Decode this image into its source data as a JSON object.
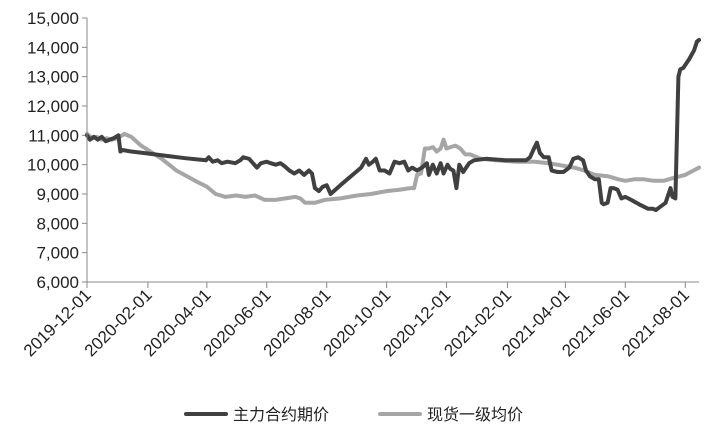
{
  "chart_data": {
    "type": "line",
    "title": "",
    "xlabel": "",
    "ylabel": "",
    "ylim": [
      6000,
      15000
    ],
    "yticks": [
      6000,
      7000,
      8000,
      9000,
      10000,
      11000,
      12000,
      13000,
      14000,
      15000
    ],
    "ytick_labels": [
      "6,000",
      "7,000",
      "8,000",
      "9,000",
      "10,000",
      "11,000",
      "12,000",
      "13,000",
      "14,000",
      "15,000"
    ],
    "xlim": [
      "2019-12-01",
      "2021-08-15"
    ],
    "xticks": [
      "2019-12-01",
      "2020-02-01",
      "2020-04-01",
      "2020-06-01",
      "2020-08-01",
      "2020-10-01",
      "2020-12-01",
      "2021-02-01",
      "2021-04-01",
      "2021-06-01",
      "2021-08-01"
    ],
    "grid": false,
    "legend": "bottom",
    "series": [
      {
        "name": "主力合约期价",
        "color": "#404040",
        "points": [
          [
            "2019-12-01",
            11000
          ],
          [
            "2019-12-04",
            10850
          ],
          [
            "2019-12-08",
            10950
          ],
          [
            "2019-12-12",
            10850
          ],
          [
            "2019-12-16",
            10950
          ],
          [
            "2019-12-20",
            10800
          ],
          [
            "2019-12-24",
            10850
          ],
          [
            "2019-12-28",
            10900
          ],
          [
            "2020-01-02",
            11000
          ],
          [
            "2020-01-04",
            10450
          ],
          [
            "2020-01-06",
            10500
          ],
          [
            "2020-01-15",
            10450
          ],
          [
            "2020-02-01",
            10380
          ],
          [
            "2020-02-20",
            10300
          ],
          [
            "2020-03-10",
            10220
          ],
          [
            "2020-03-31",
            10150
          ],
          [
            "2020-04-03",
            10250
          ],
          [
            "2020-04-07",
            10100
          ],
          [
            "2020-04-12",
            10150
          ],
          [
            "2020-04-16",
            10050
          ],
          [
            "2020-04-22",
            10100
          ],
          [
            "2020-04-30",
            10050
          ],
          [
            "2020-05-05",
            10150
          ],
          [
            "2020-05-08",
            10250
          ],
          [
            "2020-05-14",
            10200
          ],
          [
            "2020-05-18",
            10050
          ],
          [
            "2020-05-22",
            9900
          ],
          [
            "2020-05-26",
            10050
          ],
          [
            "2020-06-01",
            10100
          ],
          [
            "2020-06-05",
            10050
          ],
          [
            "2020-06-10",
            10000
          ],
          [
            "2020-06-15",
            10050
          ],
          [
            "2020-06-19",
            9950
          ],
          [
            "2020-06-24",
            9800
          ],
          [
            "2020-06-29",
            9700
          ],
          [
            "2020-07-04",
            9800
          ],
          [
            "2020-07-09",
            9650
          ],
          [
            "2020-07-14",
            9800
          ],
          [
            "2020-07-17",
            9700
          ],
          [
            "2020-07-20",
            9200
          ],
          [
            "2020-07-24",
            9100
          ],
          [
            "2020-07-28",
            9250
          ],
          [
            "2020-08-01",
            9300
          ],
          [
            "2020-08-05",
            9000
          ],
          [
            "2020-08-15",
            9300
          ],
          [
            "2020-09-05",
            9900
          ],
          [
            "2020-09-10",
            10200
          ],
          [
            "2020-09-13",
            10000
          ],
          [
            "2020-09-17",
            10100
          ],
          [
            "2020-09-20",
            10200
          ],
          [
            "2020-09-24",
            9800
          ],
          [
            "2020-09-29",
            9800
          ],
          [
            "2020-10-04",
            9700
          ],
          [
            "2020-10-09",
            10100
          ],
          [
            "2020-10-14",
            10050
          ],
          [
            "2020-10-19",
            10100
          ],
          [
            "2020-10-23",
            9800
          ],
          [
            "2020-10-27",
            9900
          ],
          [
            "2020-11-01",
            9800
          ],
          [
            "2020-11-06",
            9900
          ],
          [
            "2020-11-11",
            10050
          ],
          [
            "2020-11-13",
            9650
          ],
          [
            "2020-11-17",
            10000
          ],
          [
            "2020-11-21",
            9700
          ],
          [
            "2020-11-25",
            10050
          ],
          [
            "2020-11-28",
            9700
          ],
          [
            "2020-12-02",
            10000
          ],
          [
            "2020-12-05",
            9850
          ],
          [
            "2020-12-08",
            9800
          ],
          [
            "2020-12-11",
            9200
          ],
          [
            "2020-12-14",
            10000
          ],
          [
            "2020-12-18",
            9750
          ],
          [
            "2020-12-24",
            10050
          ],
          [
            "2020-12-29",
            10150
          ],
          [
            "2021-01-10",
            10200
          ],
          [
            "2021-01-30",
            10150
          ],
          [
            "2021-02-20",
            10150
          ],
          [
            "2021-02-24",
            10250
          ],
          [
            "2021-02-28",
            10550
          ],
          [
            "2021-03-03",
            10750
          ],
          [
            "2021-03-06",
            10400
          ],
          [
            "2021-03-10",
            10250
          ],
          [
            "2021-03-15",
            10250
          ],
          [
            "2021-03-18",
            9800
          ],
          [
            "2021-03-24",
            9750
          ],
          [
            "2021-03-30",
            9750
          ],
          [
            "2021-04-05",
            9900
          ],
          [
            "2021-04-09",
            10200
          ],
          [
            "2021-04-14",
            10250
          ],
          [
            "2021-04-19",
            10150
          ],
          [
            "2021-04-22",
            9800
          ],
          [
            "2021-04-26",
            9600
          ],
          [
            "2021-05-01",
            9500
          ],
          [
            "2021-05-05",
            9500
          ],
          [
            "2021-05-08",
            8700
          ],
          [
            "2021-05-10",
            8650
          ],
          [
            "2021-05-14",
            8700
          ],
          [
            "2021-05-17",
            9200
          ],
          [
            "2021-05-20",
            9200
          ],
          [
            "2021-05-24",
            9150
          ],
          [
            "2021-05-28",
            8850
          ],
          [
            "2021-06-01",
            8900
          ],
          [
            "2021-06-07",
            8800
          ],
          [
            "2021-06-15",
            8650
          ],
          [
            "2021-06-24",
            8500
          ],
          [
            "2021-06-29",
            8500
          ],
          [
            "2021-07-02",
            8450
          ],
          [
            "2021-07-06",
            8550
          ],
          [
            "2021-07-12",
            8700
          ],
          [
            "2021-07-17",
            9200
          ],
          [
            "2021-07-19",
            8900
          ],
          [
            "2021-07-22",
            8850
          ],
          [
            "2021-07-25",
            13000
          ],
          [
            "2021-07-27",
            13250
          ],
          [
            "2021-07-30",
            13300
          ],
          [
            "2021-08-05",
            13600
          ],
          [
            "2021-08-10",
            13900
          ],
          [
            "2021-08-13",
            14200
          ],
          [
            "2021-08-15",
            14250
          ]
        ]
      },
      {
        "name": "现货一级均价",
        "color": "#a6a6a6",
        "points": [
          [
            "2019-12-01",
            11050
          ],
          [
            "2019-12-06",
            10900
          ],
          [
            "2019-12-11",
            10950
          ],
          [
            "2019-12-16",
            10850
          ],
          [
            "2019-12-21",
            10900
          ],
          [
            "2019-12-26",
            10850
          ],
          [
            "2020-01-01",
            10900
          ],
          [
            "2020-01-08",
            11050
          ],
          [
            "2020-01-15",
            10950
          ],
          [
            "2020-01-25",
            10650
          ],
          [
            "2020-02-15",
            10200
          ],
          [
            "2020-03-01",
            9800
          ],
          [
            "2020-03-20",
            9450
          ],
          [
            "2020-04-01",
            9250
          ],
          [
            "2020-04-10",
            9000
          ],
          [
            "2020-04-20",
            8900
          ],
          [
            "2020-05-01",
            8950
          ],
          [
            "2020-05-10",
            8900
          ],
          [
            "2020-05-20",
            8950
          ],
          [
            "2020-05-30",
            8800
          ],
          [
            "2020-06-10",
            8800
          ],
          [
            "2020-06-20",
            8850
          ],
          [
            "2020-06-30",
            8900
          ],
          [
            "2020-07-05",
            8850
          ],
          [
            "2020-07-10",
            8700
          ],
          [
            "2020-07-20",
            8700
          ],
          [
            "2020-07-30",
            8800
          ],
          [
            "2020-08-15",
            8850
          ],
          [
            "2020-09-01",
            8950
          ],
          [
            "2020-09-15",
            9000
          ],
          [
            "2020-10-01",
            9100
          ],
          [
            "2020-10-15",
            9150
          ],
          [
            "2020-10-25",
            9200
          ],
          [
            "2020-10-29",
            9200
          ],
          [
            "2020-11-01",
            9650
          ],
          [
            "2020-11-05",
            9700
          ],
          [
            "2020-11-09",
            10550
          ],
          [
            "2020-11-13",
            10550
          ],
          [
            "2020-11-17",
            10600
          ],
          [
            "2020-11-21",
            10450
          ],
          [
            "2020-11-25",
            10550
          ],
          [
            "2020-11-28",
            10850
          ],
          [
            "2020-12-01",
            10550
          ],
          [
            "2020-12-05",
            10600
          ],
          [
            "2020-12-10",
            10650
          ],
          [
            "2020-12-15",
            10550
          ],
          [
            "2020-12-20",
            10350
          ],
          [
            "2020-12-25",
            10350
          ],
          [
            "2021-01-05",
            10200
          ],
          [
            "2021-01-20",
            10150
          ],
          [
            "2021-02-10",
            10100
          ],
          [
            "2021-03-01",
            10100
          ],
          [
            "2021-03-15",
            10050
          ],
          [
            "2021-04-01",
            9950
          ],
          [
            "2021-04-10",
            9900
          ],
          [
            "2021-04-20",
            9800
          ],
          [
            "2021-05-01",
            9650
          ],
          [
            "2021-05-15",
            9600
          ],
          [
            "2021-05-25",
            9500
          ],
          [
            "2021-06-01",
            9450
          ],
          [
            "2021-06-10",
            9500
          ],
          [
            "2021-06-20",
            9500
          ],
          [
            "2021-06-30",
            9450
          ],
          [
            "2021-07-10",
            9450
          ],
          [
            "2021-07-20",
            9550
          ],
          [
            "2021-08-01",
            9650
          ],
          [
            "2021-08-15",
            9900
          ]
        ]
      }
    ]
  }
}
